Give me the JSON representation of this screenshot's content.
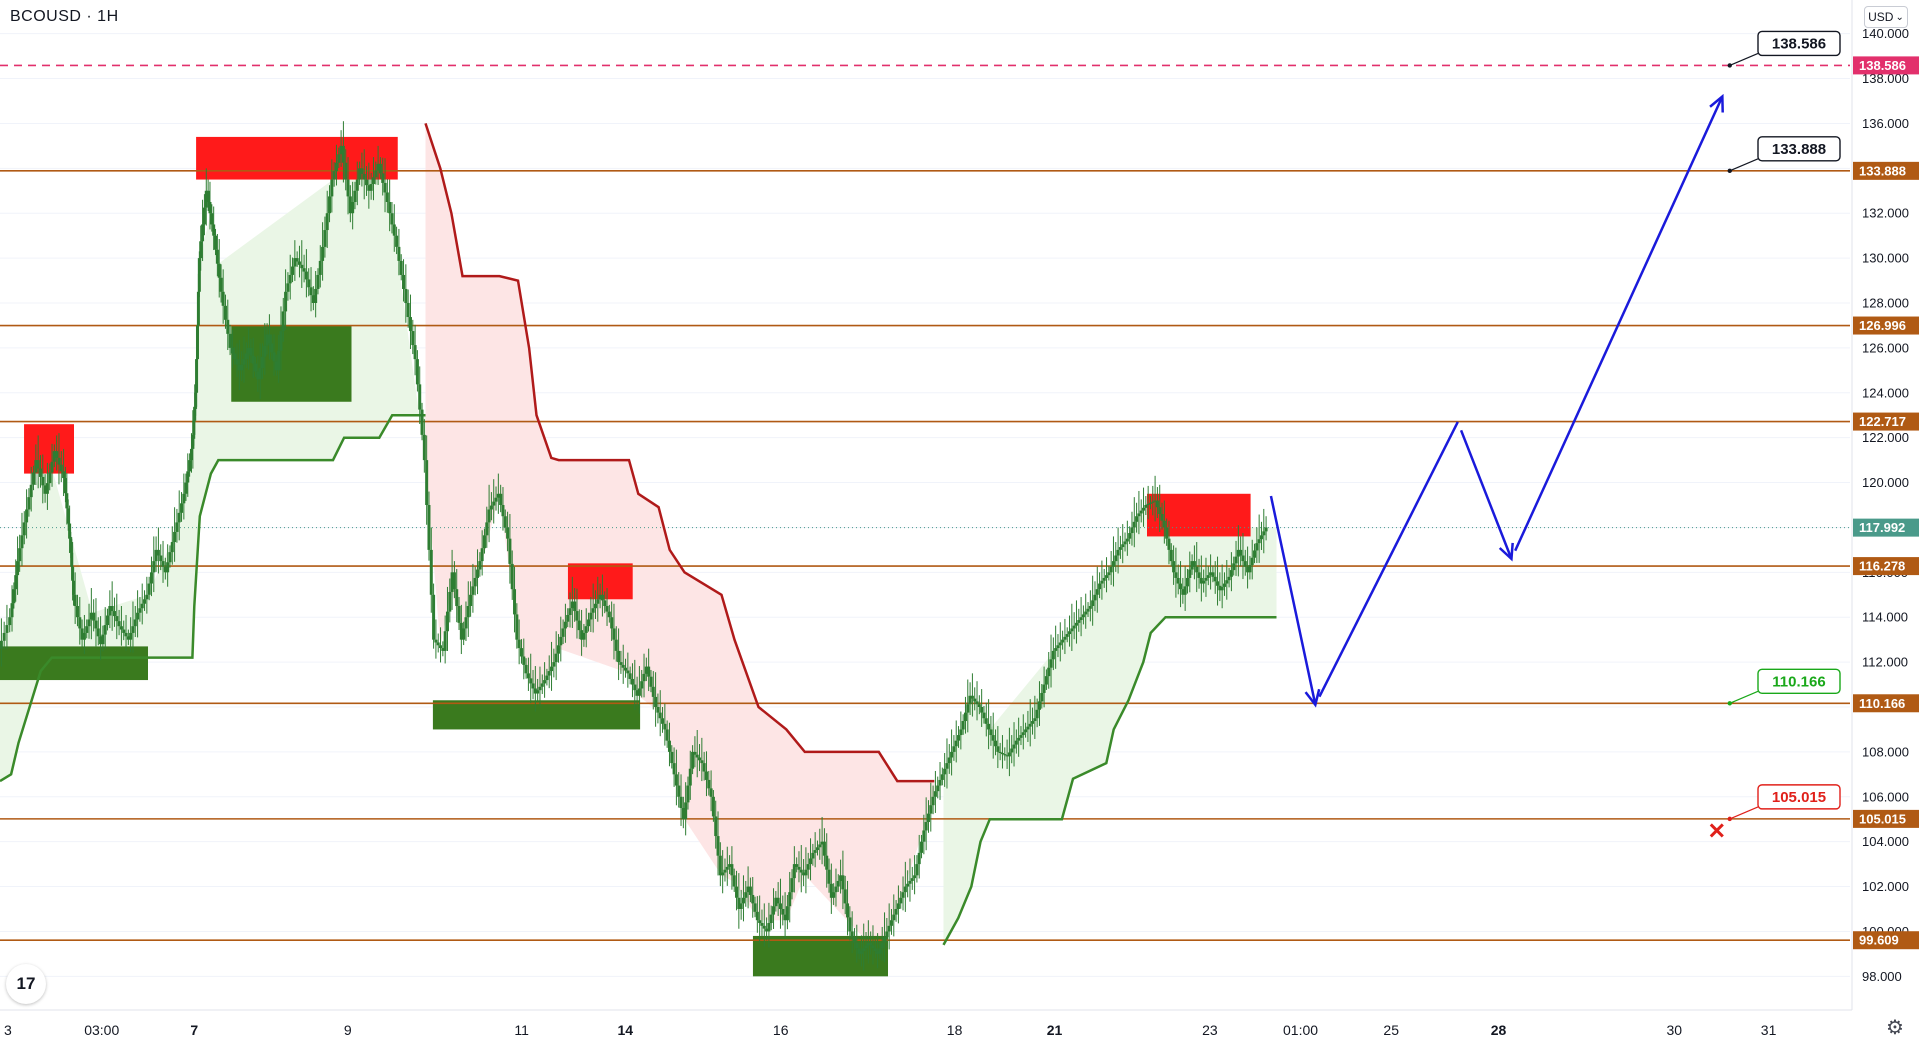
{
  "header": {
    "symbol": "BCOUSD · 1H",
    "currency": "USD",
    "currency_caret": "⌄"
  },
  "footer": {
    "logo_glyph": "17",
    "settings_glyph": "⚙"
  },
  "colors": {
    "level_line": "#b05a14",
    "target_line": "#e2306c",
    "supply_zone": "#ff1a1a",
    "demand_zone": "#3a7a1e",
    "uptrend_line": "#3a8a2a",
    "downtrend_line": "#b01a1a",
    "uptrend_fill": "#eaf6e6",
    "downtrend_fill": "#fde5e5",
    "candle": "#2e7d32",
    "projection": "#1a1adb",
    "current_price": "#4a9a8a",
    "grid": "#f0f3fa"
  },
  "chart_data": {
    "type": "candlestick",
    "symbol": "BCOUSD",
    "interval": "1H",
    "currency": "USD",
    "ylim": [
      96.5,
      141.5
    ],
    "y_ticks": [
      98.0,
      100.0,
      102.0,
      104.0,
      106.0,
      108.0,
      110.0,
      112.0,
      114.0,
      116.0,
      118.0,
      120.0,
      122.0,
      124.0,
      126.0,
      128.0,
      130.0,
      132.0,
      134.0,
      136.0,
      138.0,
      140.0
    ],
    "y_tick_labels": [
      "98.000",
      "100.000",
      "102.000",
      "104.000",
      "106.000",
      "108.000",
      "110.000",
      "112.000",
      "114.000",
      "116.000",
      "118.000",
      "120.000",
      "122.000",
      "124.000",
      "126.000",
      "128.000",
      "130.000",
      "132.000",
      "134.000",
      "136.000",
      "138.000",
      "140.000"
    ],
    "x_ticks": [
      {
        "label": "3",
        "bold": false,
        "pos": 0.0
      },
      {
        "label": "03:00",
        "bold": false,
        "pos": 0.055
      },
      {
        "label": "7",
        "bold": true,
        "pos": 0.105
      },
      {
        "label": "9",
        "bold": false,
        "pos": 0.188
      },
      {
        "label": "11",
        "bold": false,
        "pos": 0.282
      },
      {
        "label": "14",
        "bold": true,
        "pos": 0.338
      },
      {
        "label": "16",
        "bold": false,
        "pos": 0.422
      },
      {
        "label": "18",
        "bold": false,
        "pos": 0.516
      },
      {
        "label": "21",
        "bold": true,
        "pos": 0.57
      },
      {
        "label": "23",
        "bold": false,
        "pos": 0.654
      },
      {
        "label": "01:00",
        "bold": false,
        "pos": 0.703
      },
      {
        "label": "25",
        "bold": false,
        "pos": 0.752
      },
      {
        "label": "28",
        "bold": true,
        "pos": 0.81
      },
      {
        "label": "30",
        "bold": false,
        "pos": 0.905
      },
      {
        "label": "31",
        "bold": false,
        "pos": 0.956
      }
    ],
    "horizontal_levels": [
      {
        "value": 138.586,
        "label": "138.586",
        "style": "dashed",
        "color": "#e2306c"
      },
      {
        "value": 133.888,
        "label": "133.888",
        "style": "solid",
        "color": "#b05a14"
      },
      {
        "value": 126.996,
        "label": "126.996",
        "style": "solid",
        "color": "#b05a14"
      },
      {
        "value": 122.717,
        "label": "122.717",
        "style": "solid",
        "color": "#b05a14"
      },
      {
        "value": 116.278,
        "label": "116.278",
        "style": "solid",
        "color": "#b05a14"
      },
      {
        "value": 110.166,
        "label": "110.166",
        "style": "solid",
        "color": "#b05a14"
      },
      {
        "value": 105.015,
        "label": "105.015",
        "style": "solid",
        "color": "#b05a14"
      },
      {
        "value": 99.609,
        "label": "99.609",
        "style": "solid",
        "color": "#b05a14"
      }
    ],
    "current_price": {
      "value": 117.992,
      "label": "117.992"
    },
    "callouts": [
      {
        "label": "138.586",
        "value": 138.586,
        "kind": "target",
        "color": "#131722"
      },
      {
        "label": "133.888",
        "value": 133.888,
        "kind": "target",
        "color": "#131722"
      },
      {
        "label": "110.166",
        "value": 110.166,
        "kind": "entry",
        "color": "#1aa81a"
      },
      {
        "label": "105.015",
        "value": 105.015,
        "kind": "stop",
        "color": "#e0201a"
      }
    ],
    "supply_zones": [
      {
        "t0": 0.013,
        "t1": 0.04,
        "low": 120.4,
        "high": 122.6
      },
      {
        "t0": 0.106,
        "t1": 0.215,
        "low": 133.5,
        "high": 135.4
      },
      {
        "t0": 0.307,
        "t1": 0.342,
        "low": 114.8,
        "high": 116.4
      },
      {
        "t0": 0.62,
        "t1": 0.676,
        "low": 117.6,
        "high": 119.5
      }
    ],
    "demand_zones": [
      {
        "t0": 0.0,
        "t1": 0.08,
        "low": 111.2,
        "high": 112.7
      },
      {
        "t0": 0.125,
        "t1": 0.19,
        "low": 123.6,
        "high": 127.0
      },
      {
        "t0": 0.234,
        "t1": 0.346,
        "low": 109.0,
        "high": 110.3
      },
      {
        "t0": 0.407,
        "t1": 0.48,
        "low": 98.0,
        "high": 99.8
      }
    ],
    "trailing_stop_up_1": [
      [
        0.0,
        106.7
      ],
      [
        0.006,
        107.0
      ],
      [
        0.01,
        108.4
      ],
      [
        0.016,
        110.0
      ],
      [
        0.022,
        111.6
      ],
      [
        0.028,
        112.2
      ],
      [
        0.05,
        112.2
      ],
      [
        0.08,
        112.2
      ],
      [
        0.095,
        112.2
      ],
      [
        0.104,
        112.2
      ],
      [
        0.105,
        114.5
      ],
      [
        0.108,
        118.5
      ],
      [
        0.114,
        120.4
      ],
      [
        0.118,
        121.0
      ],
      [
        0.18,
        121.0
      ],
      [
        0.186,
        122.0
      ],
      [
        0.205,
        122.0
      ],
      [
        0.212,
        123.0
      ],
      [
        0.23,
        123.0
      ]
    ],
    "trailing_stop_down": [
      [
        0.23,
        136.0
      ],
      [
        0.238,
        134.0
      ],
      [
        0.244,
        132.0
      ],
      [
        0.25,
        129.2
      ],
      [
        0.27,
        129.2
      ],
      [
        0.28,
        129.0
      ],
      [
        0.286,
        126.0
      ],
      [
        0.29,
        123.0
      ],
      [
        0.298,
        121.1
      ],
      [
        0.302,
        121.0
      ],
      [
        0.34,
        121.0
      ],
      [
        0.345,
        119.5
      ],
      [
        0.356,
        118.9
      ],
      [
        0.362,
        117.0
      ],
      [
        0.37,
        116.0
      ],
      [
        0.39,
        115.0
      ],
      [
        0.397,
        113.0
      ],
      [
        0.41,
        110.0
      ],
      [
        0.425,
        109.0
      ],
      [
        0.435,
        108.0
      ],
      [
        0.475,
        108.0
      ],
      [
        0.485,
        106.7
      ],
      [
        0.505,
        106.7
      ]
    ],
    "trailing_stop_up_2": [
      [
        0.51,
        99.4
      ],
      [
        0.518,
        100.6
      ],
      [
        0.525,
        102.0
      ],
      [
        0.53,
        104.0
      ],
      [
        0.535,
        105.0
      ],
      [
        0.574,
        105.0
      ],
      [
        0.58,
        106.8
      ],
      [
        0.598,
        107.5
      ],
      [
        0.602,
        109.0
      ],
      [
        0.61,
        110.3
      ],
      [
        0.618,
        112.0
      ],
      [
        0.622,
        113.3
      ],
      [
        0.63,
        114.0
      ],
      [
        0.69,
        114.0
      ]
    ],
    "candles_path": [
      [
        0.0,
        112.6
      ],
      [
        0.006,
        114.0
      ],
      [
        0.01,
        116.5
      ],
      [
        0.015,
        118.8
      ],
      [
        0.02,
        121.0
      ],
      [
        0.025,
        119.5
      ],
      [
        0.03,
        121.4
      ],
      [
        0.035,
        120.2
      ],
      [
        0.038,
        117.5
      ],
      [
        0.04,
        115.0
      ],
      [
        0.045,
        113.0
      ],
      [
        0.05,
        114.2
      ],
      [
        0.055,
        112.8
      ],
      [
        0.06,
        114.5
      ],
      [
        0.065,
        113.6
      ],
      [
        0.07,
        113.0
      ],
      [
        0.075,
        114.2
      ],
      [
        0.08,
        115.0
      ],
      [
        0.085,
        117.0
      ],
      [
        0.09,
        116.0
      ],
      [
        0.095,
        117.8
      ],
      [
        0.1,
        119.5
      ],
      [
        0.104,
        121.5
      ],
      [
        0.106,
        124.0
      ],
      [
        0.108,
        130.0
      ],
      [
        0.112,
        133.0
      ],
      [
        0.116,
        131.0
      ],
      [
        0.12,
        128.5
      ],
      [
        0.125,
        126.0
      ],
      [
        0.13,
        125.0
      ],
      [
        0.135,
        126.0
      ],
      [
        0.14,
        124.6
      ],
      [
        0.145,
        126.6
      ],
      [
        0.15,
        125.0
      ],
      [
        0.155,
        128.5
      ],
      [
        0.16,
        130.0
      ],
      [
        0.165,
        129.4
      ],
      [
        0.17,
        128.0
      ],
      [
        0.175,
        130.5
      ],
      [
        0.18,
        133.5
      ],
      [
        0.185,
        135.0
      ],
      [
        0.19,
        132.0
      ],
      [
        0.195,
        134.0
      ],
      [
        0.2,
        133.0
      ],
      [
        0.205,
        134.2
      ],
      [
        0.21,
        132.5
      ],
      [
        0.215,
        130.5
      ],
      [
        0.22,
        128.0
      ],
      [
        0.225,
        125.5
      ],
      [
        0.23,
        121.0
      ],
      [
        0.235,
        113.0
      ],
      [
        0.24,
        112.5
      ],
      [
        0.245,
        116.0
      ],
      [
        0.25,
        113.0
      ],
      [
        0.255,
        115.0
      ],
      [
        0.26,
        116.5
      ],
      [
        0.265,
        118.8
      ],
      [
        0.27,
        119.5
      ],
      [
        0.275,
        117.5
      ],
      [
        0.28,
        113.0
      ],
      [
        0.285,
        111.5
      ],
      [
        0.29,
        110.6
      ],
      [
        0.295,
        111.2
      ],
      [
        0.3,
        112.0
      ],
      [
        0.305,
        113.5
      ],
      [
        0.31,
        114.7
      ],
      [
        0.315,
        113.0
      ],
      [
        0.32,
        114.2
      ],
      [
        0.325,
        115.0
      ],
      [
        0.33,
        114.0
      ],
      [
        0.335,
        112.0
      ],
      [
        0.34,
        111.5
      ],
      [
        0.345,
        110.5
      ],
      [
        0.35,
        111.8
      ],
      [
        0.355,
        110.0
      ],
      [
        0.36,
        109.0
      ],
      [
        0.365,
        107.0
      ],
      [
        0.37,
        105.0
      ],
      [
        0.375,
        108.0
      ],
      [
        0.38,
        107.5
      ],
      [
        0.385,
        106.0
      ],
      [
        0.39,
        102.5
      ],
      [
        0.395,
        103.0
      ],
      [
        0.4,
        101.0
      ],
      [
        0.405,
        102.0
      ],
      [
        0.41,
        100.5
      ],
      [
        0.415,
        100.0
      ],
      [
        0.42,
        101.5
      ],
      [
        0.425,
        100.5
      ],
      [
        0.43,
        103.0
      ],
      [
        0.435,
        102.5
      ],
      [
        0.44,
        103.5
      ],
      [
        0.445,
        104.0
      ],
      [
        0.45,
        101.5
      ],
      [
        0.455,
        102.5
      ],
      [
        0.46,
        100.0
      ],
      [
        0.465,
        99.0
      ],
      [
        0.47,
        99.5
      ],
      [
        0.475,
        99.0
      ],
      [
        0.48,
        100.0
      ],
      [
        0.485,
        101.0
      ],
      [
        0.49,
        102.0
      ],
      [
        0.495,
        102.5
      ],
      [
        0.5,
        104.5
      ],
      [
        0.505,
        106.0
      ],
      [
        0.51,
        107.0
      ],
      [
        0.515,
        108.0
      ],
      [
        0.52,
        109.0
      ],
      [
        0.525,
        110.5
      ],
      [
        0.53,
        110.0
      ],
      [
        0.535,
        109.0
      ],
      [
        0.54,
        108.0
      ],
      [
        0.545,
        107.8
      ],
      [
        0.55,
        108.5
      ],
      [
        0.555,
        109.0
      ],
      [
        0.56,
        109.5
      ],
      [
        0.565,
        111.0
      ],
      [
        0.57,
        112.5
      ],
      [
        0.575,
        113.0
      ],
      [
        0.58,
        113.5
      ],
      [
        0.585,
        114.0
      ],
      [
        0.59,
        114.5
      ],
      [
        0.595,
        115.5
      ],
      [
        0.6,
        116.0
      ],
      [
        0.605,
        117.0
      ],
      [
        0.61,
        117.5
      ],
      [
        0.615,
        118.5
      ],
      [
        0.62,
        119.0
      ],
      [
        0.625,
        119.2
      ],
      [
        0.63,
        118.0
      ],
      [
        0.635,
        116.0
      ],
      [
        0.64,
        115.0
      ],
      [
        0.645,
        116.5
      ],
      [
        0.65,
        115.5
      ],
      [
        0.655,
        116.0
      ],
      [
        0.66,
        115.2
      ],
      [
        0.665,
        115.8
      ],
      [
        0.67,
        117.0
      ],
      [
        0.675,
        116.0
      ],
      [
        0.68,
        117.3
      ],
      [
        0.685,
        118.0
      ]
    ],
    "projection_path": [
      [
        0.687,
        119.4
      ],
      [
        0.711,
        110.1
      ],
      [
        0.788,
        122.7
      ],
      [
        0.817,
        116.6
      ],
      [
        0.931,
        137.2
      ]
    ],
    "stop_marker": {
      "value": 104.5,
      "pos": 0.928
    }
  }
}
